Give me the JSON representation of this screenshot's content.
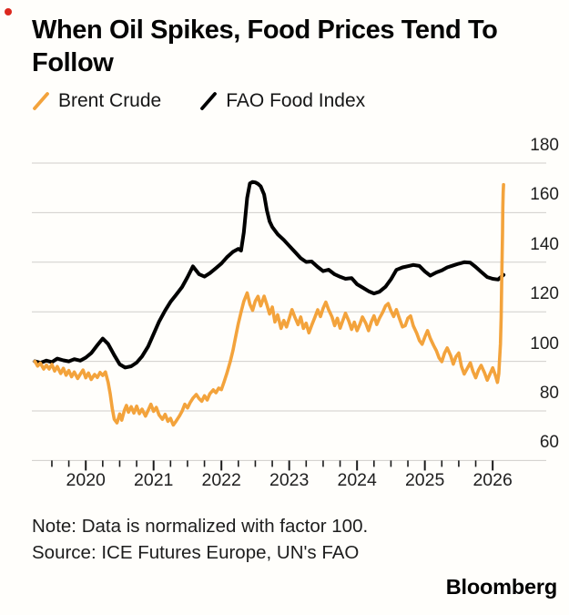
{
  "indicator": {
    "color": "#dc281e"
  },
  "title": {
    "line1": "When Oil Spikes, Food Prices Tend To",
    "line2": "Follow"
  },
  "legend": {
    "items": [
      {
        "label": "Brent Crude",
        "color": "#f3a33c"
      },
      {
        "label": "FAO Food Index",
        "color": "#000000"
      }
    ]
  },
  "note": "Note: Data is normalized with factor 100.",
  "source": "Source: ICE Futures Europe, UN's FAO",
  "brand": "Bloomberg",
  "chart_data": {
    "type": "line",
    "title": "When Oil Spikes, Food Prices Tend To Follow",
    "xlabel": "",
    "ylabel": "",
    "xlim": [
      2019.205,
      2026.79
    ],
    "ylim": [
      60,
      180
    ],
    "y_ticks": [
      180,
      160,
      140,
      120,
      100,
      80,
      60
    ],
    "x_major_ticks": [
      2020,
      2021,
      2022,
      2023,
      2024,
      2025,
      2026
    ],
    "x_minor_tick_start": 2019.5,
    "x_minor_tick_end": 2026.0,
    "x_minor_tick_step": 0.25,
    "grid": true,
    "legend_position": "top-left",
    "gridline_color": "#d0cecb",
    "tick_color": "#1a1a1a",
    "series": [
      {
        "name": "FAO Food Index",
        "color": "#000000",
        "width": 4,
        "points": [
          [
            2019.25,
            100.0
          ],
          [
            2019.33,
            99.4
          ],
          [
            2019.42,
            100.3
          ],
          [
            2019.5,
            99.7
          ],
          [
            2019.58,
            101.1
          ],
          [
            2019.67,
            100.4
          ],
          [
            2019.75,
            100.0
          ],
          [
            2019.83,
            100.9
          ],
          [
            2019.92,
            100.3
          ],
          [
            2020.0,
            101.5
          ],
          [
            2020.08,
            103.3
          ],
          [
            2020.17,
            106.5
          ],
          [
            2020.25,
            109.2
          ],
          [
            2020.33,
            107.0
          ],
          [
            2020.42,
            102.5
          ],
          [
            2020.5,
            98.8
          ],
          [
            2020.58,
            97.5
          ],
          [
            2020.67,
            98.0
          ],
          [
            2020.75,
            99.5
          ],
          [
            2020.83,
            102.0
          ],
          [
            2020.92,
            106.0
          ],
          [
            2021.0,
            111.0
          ],
          [
            2021.08,
            116.0
          ],
          [
            2021.17,
            120.5
          ],
          [
            2021.25,
            124.0
          ],
          [
            2021.33,
            126.8
          ],
          [
            2021.42,
            130.0
          ],
          [
            2021.5,
            134.0
          ],
          [
            2021.58,
            138.3
          ],
          [
            2021.67,
            135.2
          ],
          [
            2021.75,
            134.2
          ],
          [
            2021.83,
            135.6
          ],
          [
            2021.92,
            137.6
          ],
          [
            2022.0,
            139.5
          ],
          [
            2022.08,
            142.0
          ],
          [
            2022.17,
            144.2
          ],
          [
            2022.25,
            145.4
          ],
          [
            2022.29,
            144.7
          ],
          [
            2022.33,
            152.0
          ],
          [
            2022.38,
            166.0
          ],
          [
            2022.42,
            171.8
          ],
          [
            2022.46,
            172.4
          ],
          [
            2022.5,
            172.2
          ],
          [
            2022.54,
            171.6
          ],
          [
            2022.58,
            170.6
          ],
          [
            2022.63,
            167.3
          ],
          [
            2022.67,
            161.0
          ],
          [
            2022.71,
            156.5
          ],
          [
            2022.75,
            154.2
          ],
          [
            2022.83,
            151.3
          ],
          [
            2022.92,
            149.0
          ],
          [
            2023.0,
            146.6
          ],
          [
            2023.08,
            144.3
          ],
          [
            2023.17,
            141.6
          ],
          [
            2023.25,
            140.1
          ],
          [
            2023.33,
            140.3
          ],
          [
            2023.42,
            138.1
          ],
          [
            2023.5,
            136.4
          ],
          [
            2023.58,
            137.0
          ],
          [
            2023.67,
            135.1
          ],
          [
            2023.75,
            134.1
          ],
          [
            2023.83,
            133.3
          ],
          [
            2023.92,
            133.6
          ],
          [
            2024.0,
            131.1
          ],
          [
            2024.08,
            129.8
          ],
          [
            2024.17,
            128.3
          ],
          [
            2024.25,
            127.4
          ],
          [
            2024.33,
            128.1
          ],
          [
            2024.42,
            130.1
          ],
          [
            2024.5,
            133.1
          ],
          [
            2024.58,
            136.9
          ],
          [
            2024.67,
            137.9
          ],
          [
            2024.75,
            138.4
          ],
          [
            2024.83,
            138.9
          ],
          [
            2024.92,
            138.5
          ],
          [
            2025.0,
            136.3
          ],
          [
            2025.08,
            134.6
          ],
          [
            2025.17,
            135.9
          ],
          [
            2025.25,
            136.7
          ],
          [
            2025.33,
            137.9
          ],
          [
            2025.42,
            138.7
          ],
          [
            2025.5,
            139.4
          ],
          [
            2025.58,
            140.0
          ],
          [
            2025.67,
            139.8
          ],
          [
            2025.75,
            138.1
          ],
          [
            2025.83,
            136.1
          ],
          [
            2025.92,
            134.0
          ],
          [
            2026.0,
            133.3
          ],
          [
            2026.08,
            133.0
          ],
          [
            2026.16,
            134.9
          ]
        ]
      },
      {
        "name": "Brent Crude",
        "color": "#f3a33c",
        "width": 3.6,
        "points": [
          [
            2019.25,
            100.0
          ],
          [
            2019.29,
            98.1
          ],
          [
            2019.33,
            99.3
          ],
          [
            2019.38,
            96.9
          ],
          [
            2019.42,
            98.5
          ],
          [
            2019.46,
            96.9
          ],
          [
            2019.5,
            98.8
          ],
          [
            2019.54,
            96.1
          ],
          [
            2019.58,
            97.9
          ],
          [
            2019.63,
            95.1
          ],
          [
            2019.67,
            97.2
          ],
          [
            2019.71,
            94.4
          ],
          [
            2019.75,
            96.3
          ],
          [
            2019.79,
            93.8
          ],
          [
            2019.83,
            95.7
          ],
          [
            2019.88,
            93.1
          ],
          [
            2019.92,
            94.9
          ],
          [
            2019.96,
            96.5
          ],
          [
            2020.0,
            93.4
          ],
          [
            2020.04,
            95.3
          ],
          [
            2020.08,
            92.7
          ],
          [
            2020.13,
            94.7
          ],
          [
            2020.17,
            93.5
          ],
          [
            2020.21,
            95.5
          ],
          [
            2020.25,
            94.3
          ],
          [
            2020.29,
            95.7
          ],
          [
            2020.33,
            91.5
          ],
          [
            2020.36,
            87.0
          ],
          [
            2020.39,
            81.0
          ],
          [
            2020.42,
            76.6
          ],
          [
            2020.46,
            75.2
          ],
          [
            2020.5,
            78.8
          ],
          [
            2020.53,
            76.3
          ],
          [
            2020.57,
            80.3
          ],
          [
            2020.6,
            82.2
          ],
          [
            2020.63,
            79.5
          ],
          [
            2020.67,
            81.7
          ],
          [
            2020.71,
            79.1
          ],
          [
            2020.75,
            81.9
          ],
          [
            2020.79,
            78.9
          ],
          [
            2020.83,
            80.7
          ],
          [
            2020.88,
            77.9
          ],
          [
            2020.92,
            80.2
          ],
          [
            2020.96,
            82.7
          ],
          [
            2021.0,
            79.8
          ],
          [
            2021.04,
            81.4
          ],
          [
            2021.08,
            78.4
          ],
          [
            2021.13,
            76.6
          ],
          [
            2021.17,
            78.6
          ],
          [
            2021.21,
            75.8
          ],
          [
            2021.25,
            77.0
          ],
          [
            2021.29,
            74.3
          ],
          [
            2021.33,
            75.8
          ],
          [
            2021.38,
            77.9
          ],
          [
            2021.42,
            79.9
          ],
          [
            2021.46,
            82.7
          ],
          [
            2021.5,
            81.2
          ],
          [
            2021.54,
            83.4
          ],
          [
            2021.58,
            85.1
          ],
          [
            2021.63,
            86.6
          ],
          [
            2021.67,
            85.0
          ],
          [
            2021.71,
            83.9
          ],
          [
            2021.75,
            86.1
          ],
          [
            2021.79,
            84.4
          ],
          [
            2021.83,
            86.9
          ],
          [
            2021.88,
            88.5
          ],
          [
            2021.92,
            87.3
          ],
          [
            2021.96,
            89.2
          ],
          [
            2022.0,
            88.6
          ],
          [
            2022.04,
            91.8
          ],
          [
            2022.08,
            95.2
          ],
          [
            2022.13,
            99.9
          ],
          [
            2022.17,
            104.4
          ],
          [
            2022.21,
            109.8
          ],
          [
            2022.25,
            115.3
          ],
          [
            2022.29,
            119.9
          ],
          [
            2022.33,
            124.2
          ],
          [
            2022.38,
            127.6
          ],
          [
            2022.42,
            123.0
          ],
          [
            2022.46,
            120.6
          ],
          [
            2022.5,
            124.3
          ],
          [
            2022.54,
            126.2
          ],
          [
            2022.58,
            122.4
          ],
          [
            2022.63,
            126.3
          ],
          [
            2022.67,
            122.9
          ],
          [
            2022.71,
            119.1
          ],
          [
            2022.75,
            121.9
          ],
          [
            2022.79,
            115.9
          ],
          [
            2022.83,
            118.8
          ],
          [
            2022.88,
            113.3
          ],
          [
            2022.92,
            116.5
          ],
          [
            2022.96,
            113.9
          ],
          [
            2023.0,
            117.3
          ],
          [
            2023.04,
            120.9
          ],
          [
            2023.08,
            118.1
          ],
          [
            2023.13,
            114.8
          ],
          [
            2023.17,
            117.9
          ],
          [
            2023.21,
            113.3
          ],
          [
            2023.25,
            115.4
          ],
          [
            2023.29,
            111.5
          ],
          [
            2023.33,
            114.5
          ],
          [
            2023.38,
            117.9
          ],
          [
            2023.42,
            120.8
          ],
          [
            2023.46,
            118.1
          ],
          [
            2023.5,
            121.4
          ],
          [
            2023.54,
            123.9
          ],
          [
            2023.58,
            120.9
          ],
          [
            2023.63,
            118.0
          ],
          [
            2023.67,
            114.4
          ],
          [
            2023.71,
            117.4
          ],
          [
            2023.75,
            113.4
          ],
          [
            2023.79,
            116.4
          ],
          [
            2023.83,
            119.4
          ],
          [
            2023.88,
            116.2
          ],
          [
            2023.92,
            112.9
          ],
          [
            2023.96,
            115.8
          ],
          [
            2024.0,
            112.4
          ],
          [
            2024.04,
            114.9
          ],
          [
            2024.08,
            117.9
          ],
          [
            2024.13,
            115.3
          ],
          [
            2024.17,
            112.4
          ],
          [
            2024.21,
            115.9
          ],
          [
            2024.25,
            118.4
          ],
          [
            2024.29,
            114.9
          ],
          [
            2024.33,
            117.4
          ],
          [
            2024.38,
            119.9
          ],
          [
            2024.42,
            122.4
          ],
          [
            2024.46,
            123.3
          ],
          [
            2024.5,
            120.4
          ],
          [
            2024.54,
            118.1
          ],
          [
            2024.58,
            120.9
          ],
          [
            2024.63,
            116.9
          ],
          [
            2024.67,
            113.9
          ],
          [
            2024.71,
            114.4
          ],
          [
            2024.75,
            117.4
          ],
          [
            2024.79,
            118.3
          ],
          [
            2024.83,
            114.3
          ],
          [
            2024.88,
            111.4
          ],
          [
            2024.92,
            108.4
          ],
          [
            2024.96,
            106.9
          ],
          [
            2025.0,
            109.9
          ],
          [
            2025.04,
            112.4
          ],
          [
            2025.08,
            109.3
          ],
          [
            2025.13,
            106.4
          ],
          [
            2025.17,
            104.3
          ],
          [
            2025.21,
            101.4
          ],
          [
            2025.25,
            99.9
          ],
          [
            2025.29,
            103.3
          ],
          [
            2025.33,
            105.4
          ],
          [
            2025.38,
            102.3
          ],
          [
            2025.42,
            98.9
          ],
          [
            2025.46,
            101.9
          ],
          [
            2025.5,
            103.4
          ],
          [
            2025.54,
            97.9
          ],
          [
            2025.58,
            94.9
          ],
          [
            2025.63,
            97.4
          ],
          [
            2025.67,
            99.4
          ],
          [
            2025.71,
            95.9
          ],
          [
            2025.75,
            93.4
          ],
          [
            2025.79,
            96.4
          ],
          [
            2025.83,
            98.4
          ],
          [
            2025.88,
            95.4
          ],
          [
            2025.92,
            92.4
          ],
          [
            2025.96,
            94.9
          ],
          [
            2026.0,
            97.4
          ],
          [
            2026.04,
            94.4
          ],
          [
            2026.07,
            91.5
          ],
          [
            2026.09,
            95.0
          ],
          [
            2026.1,
            99.8
          ],
          [
            2026.115,
            107.0
          ],
          [
            2026.125,
            118.0
          ],
          [
            2026.135,
            135.0
          ],
          [
            2026.145,
            152.0
          ],
          [
            2026.15,
            162.0
          ],
          [
            2026.155,
            168.0
          ],
          [
            2026.16,
            171.3
          ]
        ]
      }
    ]
  }
}
